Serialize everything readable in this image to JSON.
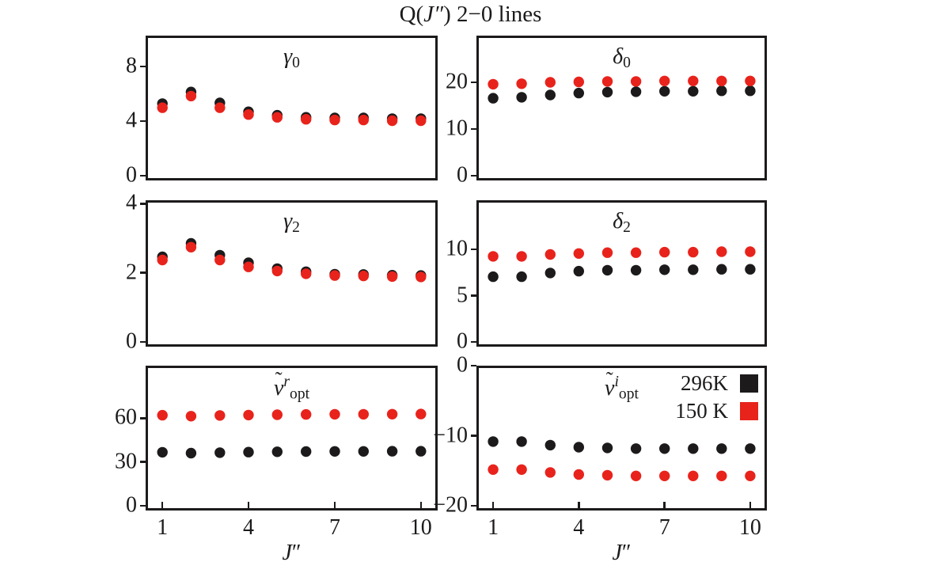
{
  "figure": {
    "title_parts": [
      {
        "text": "Q("
      },
      {
        "text": "J″",
        "style": "i"
      },
      {
        "text": ") 2−0 lines"
      }
    ],
    "xlabel_parts": [
      {
        "text": "J",
        "style": "i"
      },
      {
        "text": "″"
      }
    ]
  },
  "colors": {
    "black_296K": "#1c1a1b",
    "red_150K": "#e8231c",
    "frame": "#1c1a1b",
    "background": "#ffffff"
  },
  "legend": {
    "position": "top-right-of-nu-i-panel",
    "entries": [
      {
        "label": "296K",
        "color": "#1c1a1b"
      },
      {
        "label": "150 K",
        "color": "#e8231c"
      }
    ]
  },
  "chart_data": {
    "type": "scatter",
    "grid": false,
    "marker": "filled-circle",
    "x": [
      1,
      2,
      3,
      4,
      5,
      6,
      7,
      8,
      9,
      10
    ],
    "xlim": [
      0.5,
      10.5
    ],
    "xticks": [
      1,
      4,
      7,
      10
    ],
    "panels": [
      {
        "id": "gamma0",
        "title_parts": [
          {
            "text": "γ",
            "style": "i"
          },
          {
            "text": "0",
            "style": "sub"
          }
        ],
        "ylim": [
          0,
          10.25
        ],
        "yticks": [
          0,
          4,
          8
        ],
        "show_xtick_labels": false,
        "legend": false,
        "series": [
          {
            "name": "296K",
            "color": "#1c1a1b",
            "values": [
              5.45,
              6.3,
              5.5,
              4.85,
              4.6,
              4.45,
              4.4,
              4.4,
              4.35,
              4.35
            ]
          },
          {
            "name": "150 K",
            "color": "#e8231c",
            "values": [
              5.15,
              6.0,
              5.15,
              4.65,
              4.45,
              4.3,
              4.25,
              4.25,
              4.2,
              4.2
            ]
          }
        ]
      },
      {
        "id": "delta0",
        "title_parts": [
          {
            "text": "δ",
            "style": "i"
          },
          {
            "text": "0",
            "style": "sub"
          }
        ],
        "ylim": [
          0,
          30
        ],
        "yticks": [
          0,
          10,
          20
        ],
        "show_xtick_labels": false,
        "legend": false,
        "series": [
          {
            "name": "296K",
            "color": "#1c1a1b",
            "values": [
              17.1,
              17.3,
              17.8,
              18.2,
              18.4,
              18.5,
              18.6,
              18.6,
              18.7,
              18.7
            ]
          },
          {
            "name": "150 K",
            "color": "#e8231c",
            "values": [
              20.1,
              20.2,
              20.5,
              20.6,
              20.7,
              20.7,
              20.8,
              20.8,
              20.8,
              20.8
            ]
          }
        ]
      },
      {
        "id": "gamma2",
        "title_parts": [
          {
            "text": "γ",
            "style": "i"
          },
          {
            "text": "2",
            "style": "sub"
          }
        ],
        "ylim": [
          0,
          4.1
        ],
        "yticks": [
          0,
          2,
          4
        ],
        "show_xtick_labels": false,
        "legend": false,
        "series": [
          {
            "name": "296K",
            "color": "#1c1a1b",
            "values": [
              2.53,
              2.92,
              2.58,
              2.36,
              2.19,
              2.1,
              2.03,
              2.02,
              2.0,
              1.99
            ]
          },
          {
            "name": "150 K",
            "color": "#e8231c",
            "values": [
              2.44,
              2.81,
              2.44,
              2.24,
              2.12,
              2.04,
              1.99,
              1.98,
              1.96,
              1.95
            ]
          }
        ]
      },
      {
        "id": "delta2",
        "title_parts": [
          {
            "text": "δ",
            "style": "i"
          },
          {
            "text": "2",
            "style": "sub"
          }
        ],
        "ylim": [
          0,
          15.3
        ],
        "yticks": [
          0,
          5,
          10
        ],
        "show_xtick_labels": false,
        "legend": false,
        "series": [
          {
            "name": "296K",
            "color": "#1c1a1b",
            "values": [
              7.3,
              7.3,
              7.7,
              7.9,
              8.0,
              8.0,
              8.05,
              8.05,
              8.1,
              8.1
            ]
          },
          {
            "name": "150 K",
            "color": "#e8231c",
            "values": [
              9.5,
              9.5,
              9.7,
              9.8,
              9.9,
              9.9,
              9.95,
              9.95,
              10.0,
              10.0
            ]
          }
        ]
      },
      {
        "id": "nu_r_opt",
        "title_parts": [
          {
            "text": "ν",
            "style": "i",
            "tilde": true
          },
          {
            "text": "r",
            "style": "sup-i"
          },
          {
            "text": "opt",
            "style": "sub"
          }
        ],
        "ylim": [
          0,
          96
        ],
        "yticks": [
          0,
          30,
          60
        ],
        "show_xtick_labels": true,
        "legend": false,
        "series": [
          {
            "name": "296K",
            "color": "#1c1a1b",
            "values": [
              38.3,
              37.7,
              38.0,
              38.4,
              38.6,
              38.8,
              38.9,
              38.9,
              39.0,
              39.0
            ]
          },
          {
            "name": "150 K",
            "color": "#e8231c",
            "values": [
              63.7,
              63.0,
              63.5,
              63.8,
              64.0,
              64.2,
              64.3,
              64.3,
              64.4,
              64.5
            ]
          }
        ]
      },
      {
        "id": "nu_i_opt",
        "title_parts": [
          {
            "text": "ν",
            "style": "i",
            "tilde": true
          },
          {
            "text": "i",
            "style": "sup-i"
          },
          {
            "text": "opt",
            "style": "sub"
          }
        ],
        "ylim": [
          -20,
          0
        ],
        "yticks": [
          0,
          -10,
          -20
        ],
        "show_xtick_labels": true,
        "legend": true,
        "series": [
          {
            "name": "296K",
            "color": "#1c1a1b",
            "values": [
              -10.5,
              -10.5,
              -11.0,
              -11.3,
              -11.4,
              -11.5,
              -11.5,
              -11.5,
              -11.5,
              -11.5
            ]
          },
          {
            "name": "150 K",
            "color": "#e8231c",
            "values": [
              -14.5,
              -14.5,
              -14.9,
              -15.2,
              -15.3,
              -15.4,
              -15.4,
              -15.4,
              -15.4,
              -15.4
            ]
          }
        ]
      }
    ]
  }
}
